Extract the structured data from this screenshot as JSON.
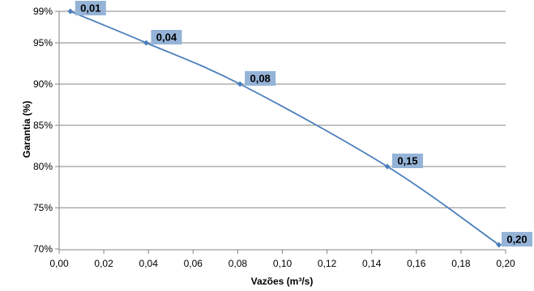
{
  "chart_data": {
    "type": "line",
    "title": "",
    "xlabel": "Vazões (m³/s)",
    "ylabel": "Garantia (%)",
    "xlim": [
      0,
      0.2
    ],
    "ylim": [
      70,
      99
    ],
    "x_ticks": [
      "0,00",
      "0,02",
      "0,04",
      "0,06",
      "0,08",
      "0,10",
      "0,12",
      "0,14",
      "0,16",
      "0,18",
      "0,20"
    ],
    "y_ticks": [
      "70%",
      "75%",
      "80%",
      "85%",
      "90%",
      "95%",
      "99%"
    ],
    "grid": true,
    "legend": "none",
    "series": [
      {
        "x": [
          0.005,
          0.039,
          0.081,
          0.147,
          0.197
        ],
        "y": [
          99,
          95,
          90,
          80,
          70.5
        ],
        "labels": [
          "0,01",
          "0,04",
          "0,08",
          "0,15",
          "0,20"
        ]
      }
    ],
    "colors": {
      "line": "#4A7EBB",
      "marker": "#4A7EBB",
      "label_bg": "#95B3D7",
      "grid": "#868686",
      "axis": "#868686"
    }
  }
}
